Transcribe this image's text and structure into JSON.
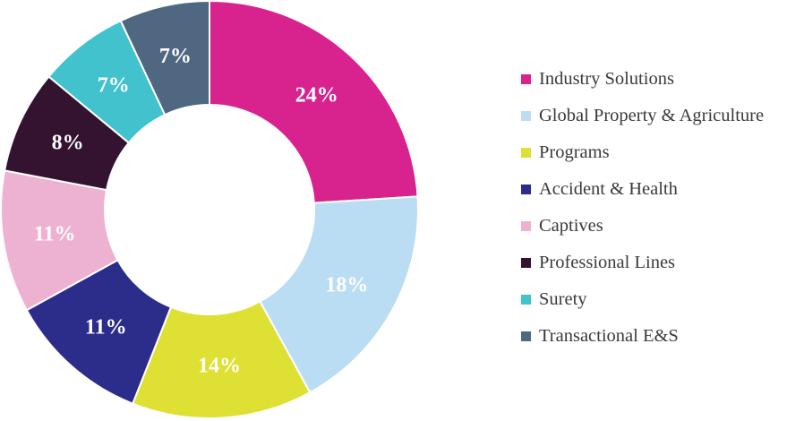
{
  "chart_data": {
    "type": "pie",
    "donut": true,
    "legend_position": "right",
    "slices": [
      {
        "name": "Industry Solutions",
        "value": 24,
        "label": "24%",
        "color": "#D8238F"
      },
      {
        "name": "Global Property & Agriculture",
        "value": 18,
        "label": "18%",
        "color": "#BBDDF3"
      },
      {
        "name": "Programs",
        "value": 14,
        "label": "14%",
        "color": "#DEE033"
      },
      {
        "name": "Accident & Health",
        "value": 11,
        "label": "11%",
        "color": "#2C2C8A"
      },
      {
        "name": "Captives",
        "value": 11,
        "label": "11%",
        "color": "#EDB2D2"
      },
      {
        "name": "Professional Lines",
        "value": 8,
        "label": "8%",
        "color": "#33132F"
      },
      {
        "name": "Surety",
        "value": 7,
        "label": "7%",
        "color": "#41C2CC"
      },
      {
        "name": "Transactional E&S",
        "value": 7,
        "label": "7%",
        "color": "#4F6781"
      }
    ]
  }
}
